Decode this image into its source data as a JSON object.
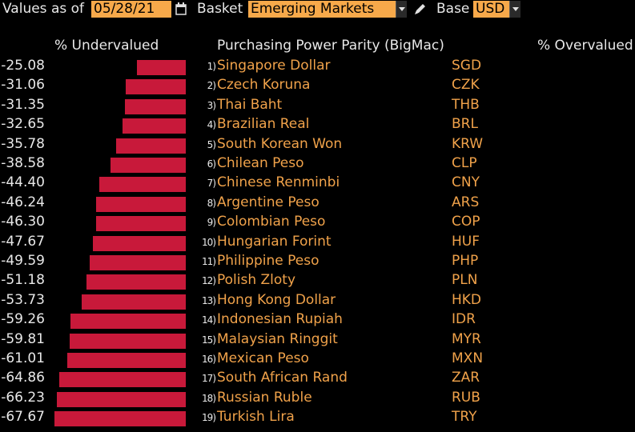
{
  "toolbar": {
    "values_as_of_label": "Values as of",
    "date_value": "05/28/21",
    "basket_label": "Basket",
    "basket_value": "Emerging Markets",
    "base_label": "Base",
    "base_value": "USD"
  },
  "chart_data": {
    "type": "bar",
    "title": "Purchasing Power Parity (BigMac)",
    "left_header": "% Undervalued",
    "right_header": "% Overvalued",
    "xlim": [
      -70,
      0
    ],
    "rows": [
      {
        "rank": "1",
        "name": "Singapore Dollar",
        "code": "SGD",
        "value": -25.08
      },
      {
        "rank": "2",
        "name": "Czech Koruna",
        "code": "CZK",
        "value": -31.06
      },
      {
        "rank": "3",
        "name": "Thai Baht",
        "code": "THB",
        "value": -31.35
      },
      {
        "rank": "4",
        "name": "Brazilian Real",
        "code": "BRL",
        "value": -32.65
      },
      {
        "rank": "5",
        "name": "South Korean Won",
        "code": "KRW",
        "value": -35.78
      },
      {
        "rank": "6",
        "name": "Chilean Peso",
        "code": "CLP",
        "value": -38.58
      },
      {
        "rank": "7",
        "name": "Chinese Renminbi",
        "code": "CNY",
        "value": -44.4
      },
      {
        "rank": "8",
        "name": "Argentine Peso",
        "code": "ARS",
        "value": -46.24
      },
      {
        "rank": "9",
        "name": "Colombian Peso",
        "code": "COP",
        "value": -46.3
      },
      {
        "rank": "10",
        "name": "Hungarian Forint",
        "code": "HUF",
        "value": -47.67
      },
      {
        "rank": "11",
        "name": "Philippine Peso",
        "code": "PHP",
        "value": -49.59
      },
      {
        "rank": "12",
        "name": "Polish Zloty",
        "code": "PLN",
        "value": -51.18
      },
      {
        "rank": "13",
        "name": "Hong Kong Dollar",
        "code": "HKD",
        "value": -53.73
      },
      {
        "rank": "14",
        "name": "Indonesian Rupiah",
        "code": "IDR",
        "value": -59.26
      },
      {
        "rank": "15",
        "name": "Malaysian Ringgit",
        "code": "MYR",
        "value": -59.81
      },
      {
        "rank": "16",
        "name": "Mexican Peso",
        "code": "MXN",
        "value": -61.01
      },
      {
        "rank": "17",
        "name": "South African Rand",
        "code": "ZAR",
        "value": -64.86
      },
      {
        "rank": "18",
        "name": "Russian Ruble",
        "code": "RUB",
        "value": -66.23
      },
      {
        "rank": "19",
        "name": "Turkish Lira",
        "code": "TRY",
        "value": -67.67
      }
    ]
  },
  "colors": {
    "bar": "#c8193a",
    "orange_text": "#f0a24a",
    "field_bg": "#f7a94a",
    "background": "#000000"
  }
}
